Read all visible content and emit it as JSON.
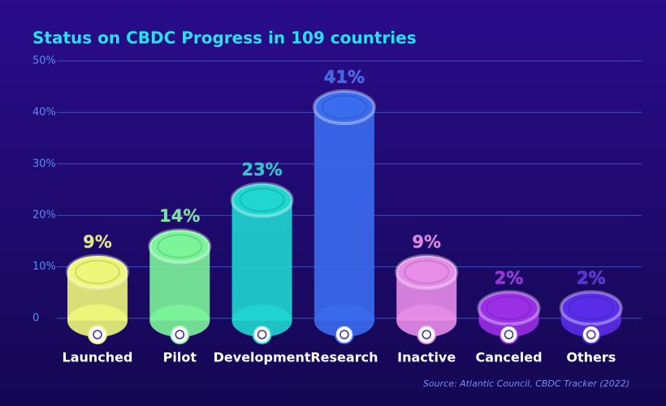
{
  "chart_data": {
    "type": "bar",
    "title": "Status on CBDC Progress in 109 countries",
    "categories": [
      "Launched",
      "Pilot",
      "Development",
      "Research",
      "Inactive",
      "Canceled",
      "Others"
    ],
    "values": [
      9,
      14,
      23,
      41,
      9,
      2,
      2
    ],
    "value_labels": [
      "9%",
      "14%",
      "23%",
      "41%",
      "9%",
      "2%",
      "2%"
    ],
    "colors": [
      "#eef77a",
      "#7cf49a",
      "#1fd6d0",
      "#3a6cf0",
      "#e78ce8",
      "#9a2fe6",
      "#5a2ee8"
    ],
    "ylim": [
      0,
      50
    ],
    "yticks": [
      0,
      {
        "value": 10,
        "label": "10%"
      },
      {
        "value": 20,
        "label": "20%"
      },
      {
        "value": 30,
        "label": "30%"
      },
      {
        "value": 40,
        "label": "40%"
      },
      {
        "value": 50,
        "label": "50%"
      }
    ],
    "grid": true,
    "source": "Source: Atlantic Council, CBDC Tracker (2022)"
  }
}
